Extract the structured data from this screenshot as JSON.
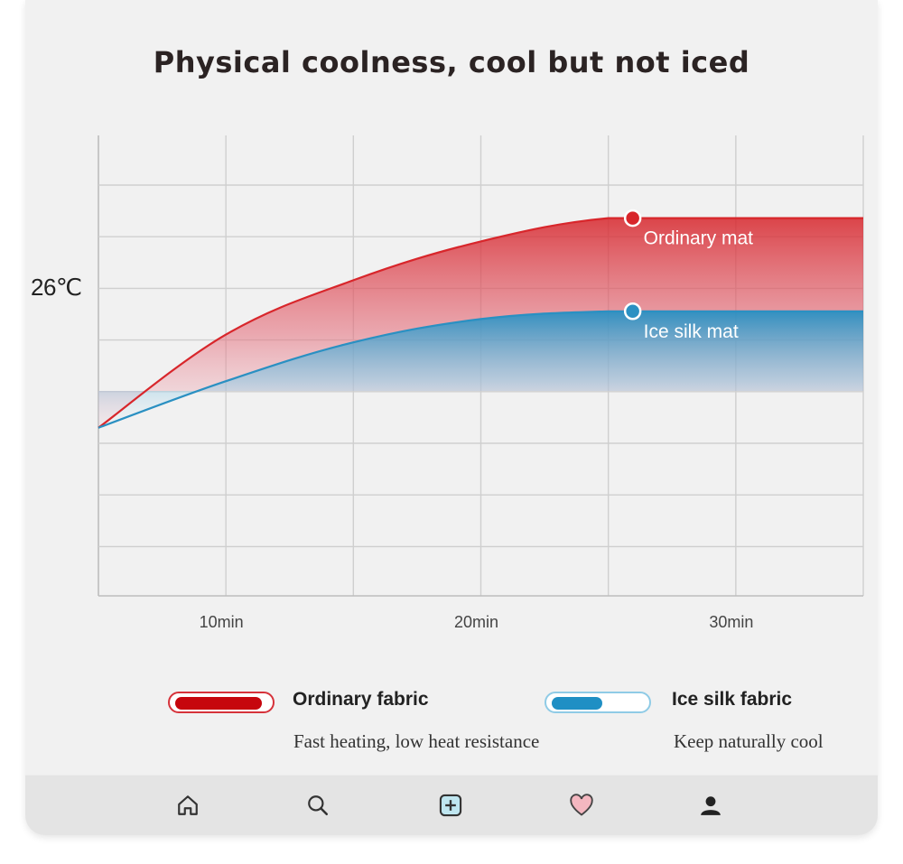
{
  "chart_data": {
    "type": "area",
    "title": "Physical coolness, cool but not iced",
    "xlabel": "",
    "ylabel": "",
    "x_ticks": [
      "10min",
      "20min",
      "30min"
    ],
    "y_ticks": [
      "26℃"
    ],
    "grid": true,
    "series": [
      {
        "name": "Ordinary mat",
        "color": "#d8262b",
        "x": [
          5,
          10,
          15,
          20,
          25,
          30,
          35
        ],
        "y": [
          24.2,
          25.4,
          26.1,
          26.6,
          26.9,
          26.9,
          26.9
        ]
      },
      {
        "name": "Ice silk mat",
        "color": "#2a90c2",
        "x": [
          5,
          10,
          15,
          20,
          25,
          30,
          35
        ],
        "y": [
          24.2,
          24.8,
          25.3,
          25.6,
          25.7,
          25.7,
          25.7
        ]
      }
    ]
  },
  "legend": [
    {
      "name": "Ordinary fabric",
      "desc": "Fast heating, low heat resistance",
      "color": "#c6060d"
    },
    {
      "name": "Ice silk fabric",
      "desc": "Keep naturally cool",
      "color": "#1f8fc4"
    }
  ],
  "nav": [
    {
      "icon": "home-icon"
    },
    {
      "icon": "search-icon"
    },
    {
      "icon": "add-icon"
    },
    {
      "icon": "heart-icon"
    },
    {
      "icon": "user-icon"
    }
  ]
}
